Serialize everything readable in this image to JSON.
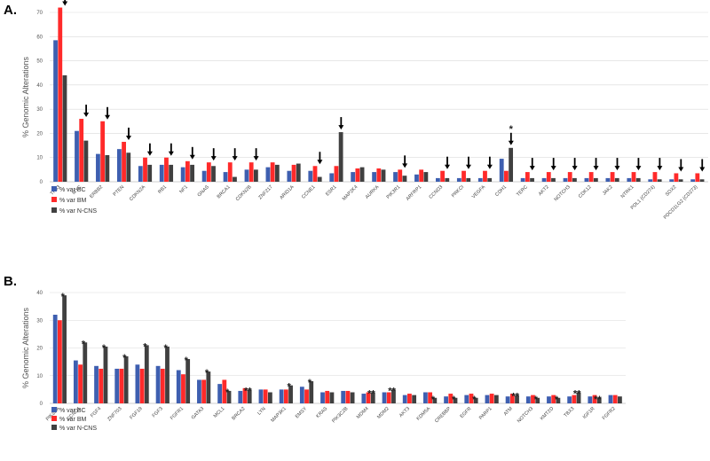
{
  "colors": {
    "bc": "#3e5fb0",
    "bm": "#ff2a2a",
    "ncns": "#404040"
  },
  "chart_data": [
    {
      "panel": "A.",
      "type": "bar",
      "ylabel": "% Genomic Alterations",
      "ylim": [
        0,
        70
      ],
      "yticks": [
        0,
        10,
        20,
        30,
        40,
        50,
        60,
        70
      ],
      "grid": true,
      "legend_position": "bottom-left",
      "categories": [
        "TP53",
        "MYC",
        "ERBB2",
        "PTEN",
        "CDKN2A",
        "RB1",
        "NF1",
        "GNAS",
        "BRCA1",
        "CDKN2B",
        "ZNF217",
        "ARID1A",
        "CCNE1",
        "ESR1",
        "MAP2K4",
        "AURKA",
        "PIK3R1",
        "ARFRP1",
        "CCND3",
        "PRKCI",
        "VEGFA",
        "CDH1",
        "TERC",
        "AKT2",
        "NOTCH3",
        "CDK12",
        "JAK2",
        "NTRK1",
        "PDL1 (CD274)",
        "SOX2",
        "PDCD1LG2 (CD273)"
      ],
      "series": [
        {
          "name": "% var BC",
          "color_key": "bc",
          "values": [
            58.5,
            21,
            11.5,
            13.5,
            6.5,
            7,
            6,
            4.5,
            4,
            5,
            6,
            4.5,
            4.5,
            3.5,
            4,
            4,
            4,
            3,
            1.5,
            1.5,
            1.5,
            9.5,
            1.5,
            1.5,
            1.5,
            1.5,
            1.5,
            1.5,
            1,
            1,
            1
          ]
        },
        {
          "name": "% var BM",
          "color_key": "bm",
          "values": [
            72,
            26,
            25,
            16.5,
            10,
            10,
            8.5,
            8,
            8,
            8,
            8,
            7,
            6.5,
            6.5,
            5.5,
            5.5,
            5,
            5,
            4.5,
            4.5,
            4.5,
            4.5,
            4,
            4,
            4,
            4,
            4,
            4,
            4,
            3.5,
            3.5
          ]
        },
        {
          "name": "% var N-CNS",
          "color_key": "ncns",
          "values": [
            44,
            17,
            11,
            12,
            7,
            7,
            7,
            6.5,
            2,
            5,
            7,
            7.5,
            2,
            20.5,
            6,
            5,
            2.5,
            4,
            1.5,
            1.5,
            1.5,
            14,
            1.5,
            1.5,
            1.5,
            1.5,
            1.5,
            1.5,
            1,
            1,
            1
          ]
        }
      ],
      "markers": [
        {
          "category": "TP53",
          "symbol": "↓"
        },
        {
          "category": "MYC",
          "symbol": "↓"
        },
        {
          "category": "ERBB2",
          "symbol": "↓"
        },
        {
          "category": "PTEN",
          "symbol": "↓"
        },
        {
          "category": "CDKN2A",
          "symbol": "↓"
        },
        {
          "category": "RB1",
          "symbol": "↓"
        },
        {
          "category": "NF1",
          "symbol": "↓"
        },
        {
          "category": "GNAS",
          "symbol": "↓"
        },
        {
          "category": "BRCA1",
          "symbol": "↓"
        },
        {
          "category": "CDKN2B",
          "symbol": "↓"
        },
        {
          "category": "CCNE1",
          "symbol": "↓"
        },
        {
          "category": "ESR1",
          "symbol": "↓"
        },
        {
          "category": "PIK3R1",
          "symbol": "↓"
        },
        {
          "category": "CCND3",
          "symbol": "↓"
        },
        {
          "category": "PRKCI",
          "symbol": "↓"
        },
        {
          "category": "VEGFA",
          "symbol": "↓"
        },
        {
          "category": "CDH1",
          "symbol": "*↓"
        },
        {
          "category": "TERC",
          "symbol": "↓"
        },
        {
          "category": "AKT2",
          "symbol": "↓"
        },
        {
          "category": "NOTCH3",
          "symbol": "↓"
        },
        {
          "category": "CDK12",
          "symbol": "↓"
        },
        {
          "category": "JAK2",
          "symbol": "↓"
        },
        {
          "category": "NTRK1",
          "symbol": "↓"
        },
        {
          "category": "PDL1 (CD274)",
          "symbol": "↓"
        },
        {
          "category": "SOX2",
          "symbol": "↓"
        },
        {
          "category": "PDCD1LG2 (CD273)",
          "symbol": "↓"
        }
      ]
    },
    {
      "panel": "B.",
      "type": "bar",
      "ylabel": "% Genomic Alterations",
      "ylim": [
        0,
        40
      ],
      "yticks": [
        0,
        10,
        20,
        30,
        40
      ],
      "grid": true,
      "legend_position": "bottom-left",
      "categories": [
        "PIK3CA",
        "CCND1",
        "FGF4",
        "ZNF703",
        "FGF19",
        "FGF3",
        "FGFR1",
        "GATA3",
        "MCL1",
        "BRCA2",
        "LYN",
        "MAP3K1",
        "EMSY",
        "KRAS",
        "PIK3C2B",
        "MDM4",
        "MDM2",
        "AKT3",
        "KDM5A",
        "CREBBP",
        "EGFR",
        "PARP1",
        "ATM",
        "NOTCH3",
        "KMT2D",
        "TBX3",
        "IGF1R",
        "FGFR2"
      ],
      "series": [
        {
          "name": "% var BC",
          "color_key": "bc",
          "values": [
            32,
            15.5,
            13.5,
            12.5,
            14,
            13.5,
            12,
            8.5,
            7,
            4.5,
            5,
            5,
            6,
            4,
            4.5,
            3.5,
            4,
            3,
            4,
            2.5,
            3,
            3,
            2.5,
            2.5,
            2.5,
            2.5,
            2.5,
            3
          ]
        },
        {
          "name": "% var BM",
          "color_key": "bm",
          "values": [
            30,
            14,
            12.5,
            12.5,
            12.5,
            12.5,
            10.5,
            8.5,
            8.5,
            5.5,
            5,
            5,
            5,
            4.5,
            4.5,
            4,
            4,
            3.5,
            4,
            3.5,
            3.5,
            3.5,
            3.5,
            3,
            3,
            3,
            3,
            3
          ]
        },
        {
          "name": "% var N-CNS",
          "color_key": "ncns",
          "values": [
            39,
            22,
            20.5,
            17,
            21,
            20.5,
            16,
            11.5,
            4.5,
            5,
            4,
            6.5,
            8,
            4,
            4,
            4,
            5,
            3,
            2,
            2,
            2,
            3,
            3,
            2,
            2,
            4,
            2,
            2.5
          ]
        }
      ],
      "markers": [
        {
          "category": "PIK3CA",
          "symbol": "*"
        },
        {
          "category": "CCND1",
          "symbol": "*"
        },
        {
          "category": "FGF4",
          "symbol": "*"
        },
        {
          "category": "ZNF703",
          "symbol": "*"
        },
        {
          "category": "FGF19",
          "symbol": "*"
        },
        {
          "category": "FGF3",
          "symbol": "*"
        },
        {
          "category": "FGFR1",
          "symbol": "*"
        },
        {
          "category": "GATA3",
          "symbol": "*"
        },
        {
          "category": "MCL1",
          "symbol": "*"
        },
        {
          "category": "BRCA2",
          "symbol": "**"
        },
        {
          "category": "MAP3K1",
          "symbol": "*"
        },
        {
          "category": "EMSY",
          "symbol": "*"
        },
        {
          "category": "MDM4",
          "symbol": "**"
        },
        {
          "category": "MDM2",
          "symbol": "**"
        },
        {
          "category": "KDM5A",
          "symbol": "*"
        },
        {
          "category": "CREBBP",
          "symbol": "*"
        },
        {
          "category": "EGFR",
          "symbol": "*"
        },
        {
          "category": "ATM",
          "symbol": "**"
        },
        {
          "category": "NOTCH3",
          "symbol": "*"
        },
        {
          "category": "KMT2D",
          "symbol": "*"
        },
        {
          "category": "TBX3",
          "symbol": "**"
        },
        {
          "category": "IGF1R",
          "symbol": "**"
        }
      ]
    }
  ]
}
